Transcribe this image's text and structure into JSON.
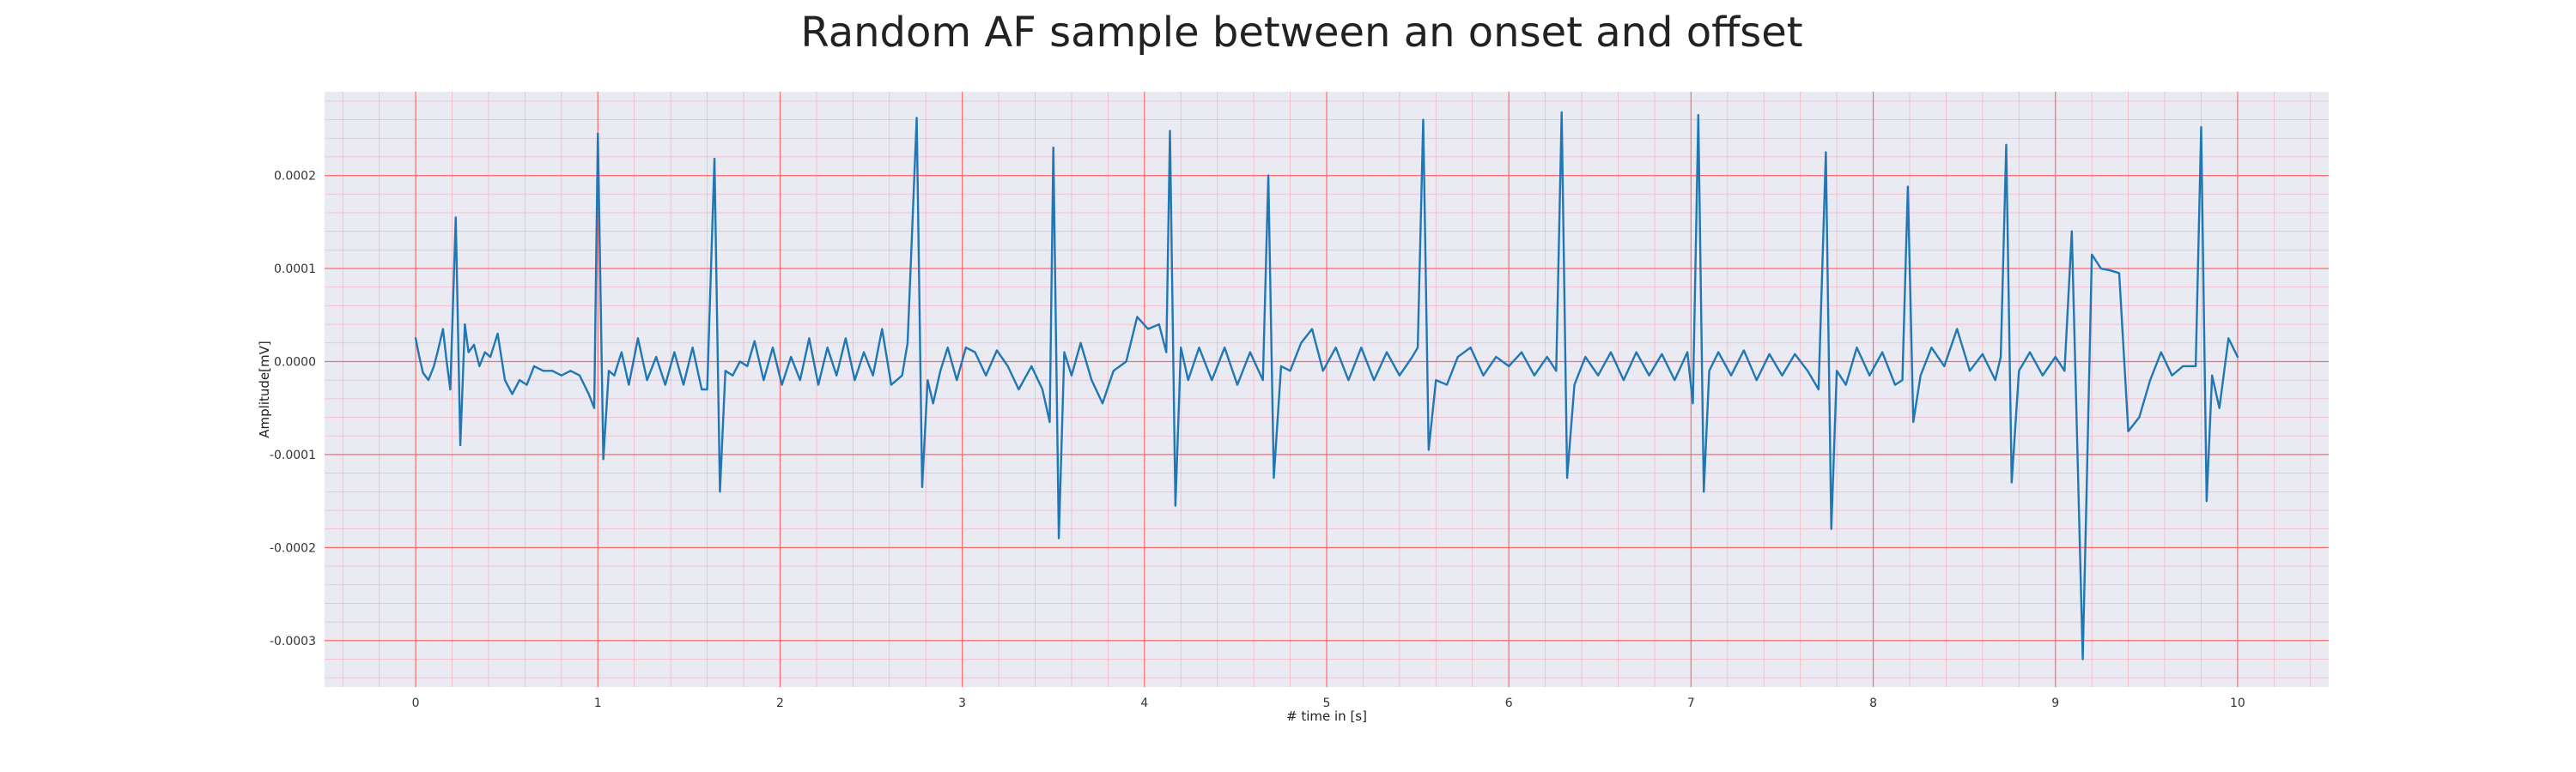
{
  "chart_data": {
    "type": "line",
    "title": "Random AF sample between an onset and offset",
    "xlabel": "# time in [s]",
    "ylabel": "Amplitude[mV]",
    "xlim": [
      -0.5,
      10.5
    ],
    "ylim": [
      -0.00035,
      0.00029
    ],
    "xticks": [
      0,
      1,
      2,
      3,
      4,
      5,
      6,
      7,
      8,
      9,
      10
    ],
    "xtick_labels": [
      "0",
      "1",
      "2",
      "3",
      "4",
      "5",
      "6",
      "7",
      "8",
      "9",
      "10"
    ],
    "yticks": [
      -0.0003,
      -0.0002,
      -0.0001,
      0.0,
      0.0001,
      0.0002
    ],
    "ytick_labels": [
      "-0.0003",
      "-0.0002",
      "-0.0001",
      "0.0000",
      "0.0001",
      "0.0002"
    ],
    "grid": true,
    "colors": {
      "line": "#1f77b4",
      "plot_background": "#eaeaf2",
      "major_grid": "#ff6b6b",
      "minor_grid": "#f4b6c2"
    },
    "series": [
      {
        "name": "",
        "points": [
          [
            0.0,
            2.5e-05
          ],
          [
            0.02,
            5e-06
          ],
          [
            0.04,
            -1.2e-05
          ],
          [
            0.07,
            -2e-05
          ],
          [
            0.1,
            -5e-06
          ],
          [
            0.12,
            1e-05
          ],
          [
            0.15,
            3.5e-05
          ],
          [
            0.17,
            0.0
          ],
          [
            0.19,
            -3e-05
          ],
          [
            0.22,
            0.000155
          ],
          [
            0.245,
            -9e-05
          ],
          [
            0.27,
            4e-05
          ],
          [
            0.29,
            1e-05
          ],
          [
            0.32,
            1.8e-05
          ],
          [
            0.35,
            -5e-06
          ],
          [
            0.38,
            1e-05
          ],
          [
            0.41,
            5e-06
          ],
          [
            0.45,
            3e-05
          ],
          [
            0.49,
            -2e-05
          ],
          [
            0.53,
            -3.5e-05
          ],
          [
            0.57,
            -2e-05
          ],
          [
            0.61,
            -2.5e-05
          ],
          [
            0.65,
            -5e-06
          ],
          [
            0.7,
            -1e-05
          ],
          [
            0.75,
            -1e-05
          ],
          [
            0.8,
            -1.5e-05
          ],
          [
            0.85,
            -1e-05
          ],
          [
            0.9,
            -1.5e-05
          ],
          [
            0.95,
            -3.5e-05
          ],
          [
            0.98,
            -5e-05
          ],
          [
            1.0,
            0.000245
          ],
          [
            1.03,
            -0.000105
          ],
          [
            1.06,
            -1e-05
          ],
          [
            1.09,
            -1.5e-05
          ],
          [
            1.13,
            1e-05
          ],
          [
            1.17,
            -2.5e-05
          ],
          [
            1.22,
            2.5e-05
          ],
          [
            1.27,
            -2e-05
          ],
          [
            1.32,
            5e-06
          ],
          [
            1.37,
            -2.5e-05
          ],
          [
            1.42,
            1e-05
          ],
          [
            1.47,
            -2.5e-05
          ],
          [
            1.52,
            1.5e-05
          ],
          [
            1.57,
            -3e-05
          ],
          [
            1.6,
            -3e-05
          ],
          [
            1.64,
            0.000218
          ],
          [
            1.67,
            -0.00014
          ],
          [
            1.7,
            -1e-05
          ],
          [
            1.74,
            -1.5e-05
          ],
          [
            1.78,
            0.0
          ],
          [
            1.82,
            -5e-06
          ],
          [
            1.86,
            2.2e-05
          ],
          [
            1.91,
            -2e-05
          ],
          [
            1.96,
            1.5e-05
          ],
          [
            2.01,
            -2.5e-05
          ],
          [
            2.06,
            5e-06
          ],
          [
            2.11,
            -2e-05
          ],
          [
            2.16,
            2.5e-05
          ],
          [
            2.21,
            -2.5e-05
          ],
          [
            2.26,
            1.5e-05
          ],
          [
            2.31,
            -1.5e-05
          ],
          [
            2.36,
            2.5e-05
          ],
          [
            2.41,
            -2e-05
          ],
          [
            2.46,
            1e-05
          ],
          [
            2.51,
            -1.5e-05
          ],
          [
            2.56,
            3.5e-05
          ],
          [
            2.61,
            -2.5e-05
          ],
          [
            2.67,
            -1.5e-05
          ],
          [
            2.7,
            2e-05
          ],
          [
            2.75,
            0.000262
          ],
          [
            2.78,
            -0.000135
          ],
          [
            2.81,
            -2e-05
          ],
          [
            2.84,
            -4.5e-05
          ],
          [
            2.88,
            -1e-05
          ],
          [
            2.92,
            1.5e-05
          ],
          [
            2.97,
            -2e-05
          ],
          [
            3.02,
            1.5e-05
          ],
          [
            3.07,
            1e-05
          ],
          [
            3.13,
            -1.5e-05
          ],
          [
            3.19,
            1.2e-05
          ],
          [
            3.25,
            -5e-06
          ],
          [
            3.31,
            -3e-05
          ],
          [
            3.38,
            -5e-06
          ],
          [
            3.44,
            -3e-05
          ],
          [
            3.48,
            -6.5e-05
          ],
          [
            3.5,
            0.00023
          ],
          [
            3.53,
            -0.00019
          ],
          [
            3.56,
            1e-05
          ],
          [
            3.6,
            -1.5e-05
          ],
          [
            3.65,
            2e-05
          ],
          [
            3.71,
            -2e-05
          ],
          [
            3.77,
            -4.5e-05
          ],
          [
            3.83,
            -1e-05
          ],
          [
            3.9,
            0.0
          ],
          [
            3.96,
            4.8e-05
          ],
          [
            4.02,
            3.5e-05
          ],
          [
            4.08,
            4e-05
          ],
          [
            4.12,
            1e-05
          ],
          [
            4.14,
            0.000248
          ],
          [
            4.17,
            -0.000155
          ],
          [
            4.2,
            1.5e-05
          ],
          [
            4.24,
            -2e-05
          ],
          [
            4.3,
            1.5e-05
          ],
          [
            4.37,
            -2e-05
          ],
          [
            4.44,
            1.5e-05
          ],
          [
            4.51,
            -2.5e-05
          ],
          [
            4.58,
            1e-05
          ],
          [
            4.65,
            -2e-05
          ],
          [
            4.68,
            0.0002
          ],
          [
            4.71,
            -0.000125
          ],
          [
            4.75,
            -5e-06
          ],
          [
            4.8,
            -1e-05
          ],
          [
            4.86,
            2e-05
          ],
          [
            4.92,
            3.5e-05
          ],
          [
            4.98,
            -1e-05
          ],
          [
            5.05,
            1.5e-05
          ],
          [
            5.12,
            -2e-05
          ],
          [
            5.19,
            1.5e-05
          ],
          [
            5.26,
            -2e-05
          ],
          [
            5.33,
            1e-05
          ],
          [
            5.4,
            -1.5e-05
          ],
          [
            5.47,
            5e-06
          ],
          [
            5.5,
            1.5e-05
          ],
          [
            5.53,
            0.00026
          ],
          [
            5.56,
            -9.5e-05
          ],
          [
            5.6,
            -2e-05
          ],
          [
            5.66,
            -2.5e-05
          ],
          [
            5.72,
            5e-06
          ],
          [
            5.79,
            1.5e-05
          ],
          [
            5.86,
            -1.5e-05
          ],
          [
            5.93,
            5e-06
          ],
          [
            6.0,
            -5e-06
          ],
          [
            6.07,
            1e-05
          ],
          [
            6.14,
            -1.5e-05
          ],
          [
            6.21,
            5e-06
          ],
          [
            6.26,
            -1e-05
          ],
          [
            6.29,
            0.000268
          ],
          [
            6.32,
            -0.000125
          ],
          [
            6.36,
            -2.5e-05
          ],
          [
            6.42,
            5e-06
          ],
          [
            6.49,
            -1.5e-05
          ],
          [
            6.56,
            1e-05
          ],
          [
            6.63,
            -2e-05
          ],
          [
            6.7,
            1e-05
          ],
          [
            6.77,
            -1.5e-05
          ],
          [
            6.84,
            8e-06
          ],
          [
            6.91,
            -2e-05
          ],
          [
            6.98,
            1e-05
          ],
          [
            7.01,
            -4.5e-05
          ],
          [
            7.04,
            0.000265
          ],
          [
            7.07,
            -0.00014
          ],
          [
            7.1,
            -1e-05
          ],
          [
            7.15,
            1e-05
          ],
          [
            7.22,
            -1.5e-05
          ],
          [
            7.29,
            1.2e-05
          ],
          [
            7.36,
            -2e-05
          ],
          [
            7.43,
            8e-06
          ],
          [
            7.5,
            -1.5e-05
          ],
          [
            7.57,
            8e-06
          ],
          [
            7.64,
            -1e-05
          ],
          [
            7.7,
            -3e-05
          ],
          [
            7.74,
            0.000225
          ],
          [
            7.77,
            -0.00018
          ],
          [
            7.8,
            -1e-05
          ],
          [
            7.85,
            -2.5e-05
          ],
          [
            7.91,
            1.5e-05
          ],
          [
            7.98,
            -1.5e-05
          ],
          [
            8.05,
            1e-05
          ],
          [
            8.12,
            -2.5e-05
          ],
          [
            8.16,
            -2e-05
          ],
          [
            8.19,
            0.000188
          ],
          [
            8.22,
            -6.5e-05
          ],
          [
            8.26,
            -1.5e-05
          ],
          [
            8.32,
            1.5e-05
          ],
          [
            8.39,
            -5e-06
          ],
          [
            8.46,
            3.5e-05
          ],
          [
            8.53,
            -1e-05
          ],
          [
            8.6,
            8e-06
          ],
          [
            8.67,
            -2e-05
          ],
          [
            8.7,
            5e-06
          ],
          [
            8.73,
            0.000233
          ],
          [
            8.76,
            -0.00013
          ],
          [
            8.8,
            -1e-05
          ],
          [
            8.86,
            1e-05
          ],
          [
            8.93,
            -1.5e-05
          ],
          [
            9.0,
            5e-06
          ],
          [
            9.05,
            -1e-05
          ],
          [
            9.09,
            0.00014
          ],
          [
            9.12,
            -9e-05
          ],
          [
            9.15,
            -0.00032
          ],
          [
            9.17,
            -0.00015
          ],
          [
            9.2,
            0.000115
          ],
          [
            9.25,
            0.0001
          ],
          [
            9.3,
            9.8e-05
          ],
          [
            9.35,
            9.5e-05
          ],
          [
            9.4,
            -7.5e-05
          ],
          [
            9.46,
            -6e-05
          ],
          [
            9.52,
            -2e-05
          ],
          [
            9.58,
            1e-05
          ],
          [
            9.64,
            -1.5e-05
          ],
          [
            9.7,
            -5e-06
          ],
          [
            9.77,
            -5e-06
          ],
          [
            9.8,
            0.000252
          ],
          [
            9.83,
            -0.00015
          ],
          [
            9.86,
            -1.5e-05
          ],
          [
            9.9,
            -5e-05
          ],
          [
            9.95,
            2.5e-05
          ],
          [
            10.0,
            5e-06
          ]
        ]
      }
    ]
  }
}
